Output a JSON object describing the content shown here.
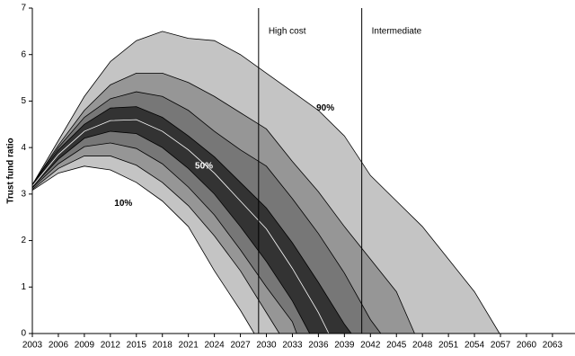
{
  "chart_data": {
    "type": "fan",
    "y_label": "Trust fund ratio",
    "xlim": [
      2003,
      2065.6
    ],
    "ylim": [
      0,
      7
    ],
    "xticks": [
      2003,
      2006,
      2009,
      2012,
      2015,
      2018,
      2021,
      2024,
      2027,
      2030,
      2033,
      2036,
      2039,
      2042,
      2045,
      2048,
      2051,
      2054,
      2057,
      2060,
      2063
    ],
    "yticks": [
      0,
      1,
      2,
      3,
      4,
      5,
      6,
      7
    ],
    "grid": false,
    "vlines": [
      {
        "x": 2029.1,
        "label": "High cost"
      },
      {
        "x": 2041,
        "label": "Intermediate"
      }
    ],
    "series": [
      {
        "name": "90%",
        "fill": "#c4c4c4",
        "line_color": "#000000",
        "x": [
          2003,
          2006,
          2009,
          2012,
          2015,
          2018,
          2021,
          2024,
          2027,
          2030,
          2033,
          2036,
          2039,
          2042,
          2045,
          2048,
          2051,
          2054,
          2056.9
        ],
        "values": [
          3.2,
          4.15,
          5.1,
          5.85,
          6.3,
          6.5,
          6.35,
          6.3,
          6.0,
          5.6,
          5.2,
          4.8,
          4.25,
          3.4,
          2.85,
          2.3,
          1.6,
          0.9,
          0
        ]
      },
      {
        "fill": "#969696",
        "line_color": "#000000",
        "x": [
          2003,
          2006,
          2009,
          2012,
          2015,
          2018,
          2021,
          2024,
          2027,
          2030,
          2033,
          2036,
          2039,
          2042,
          2045,
          2047.1
        ],
        "values": [
          3.2,
          4.05,
          4.8,
          5.35,
          5.6,
          5.6,
          5.4,
          5.1,
          4.75,
          4.4,
          3.7,
          3.05,
          2.3,
          1.6,
          0.9,
          0
        ]
      },
      {
        "fill": "#777777",
        "line_color": "#000000",
        "x": [
          2003,
          2006,
          2009,
          2012,
          2015,
          2018,
          2021,
          2024,
          2027,
          2030,
          2033,
          2036,
          2039,
          2042,
          2043.2
        ],
        "values": [
          3.2,
          4.0,
          4.65,
          5.05,
          5.2,
          5.1,
          4.8,
          4.35,
          3.95,
          3.6,
          2.9,
          2.15,
          1.3,
          0.3,
          0
        ]
      },
      {
        "fill": "#333333",
        "line_color": "#000000",
        "x": [
          2003,
          2006,
          2009,
          2012,
          2015,
          2018,
          2021,
          2024,
          2027,
          2030,
          2033,
          2036,
          2039,
          2039.8
        ],
        "values": [
          3.18,
          3.95,
          4.5,
          4.85,
          4.88,
          4.65,
          4.25,
          3.8,
          3.25,
          2.7,
          1.95,
          1.1,
          0.2,
          0
        ]
      },
      {
        "name": "50%",
        "fill": "#333333",
        "line_color": "#ffffff",
        "x": [
          2003,
          2006,
          2009,
          2012,
          2015,
          2018,
          2021,
          2024,
          2027,
          2030,
          2033,
          2036,
          2037.2
        ],
        "values": [
          3.17,
          3.85,
          4.35,
          4.58,
          4.6,
          4.35,
          3.95,
          3.45,
          2.85,
          2.25,
          1.4,
          0.45,
          0
        ]
      },
      {
        "fill": "#777777",
        "line_color": "#000000",
        "x": [
          2003,
          2006,
          2009,
          2012,
          2015,
          2018,
          2021,
          2024,
          2027,
          2030,
          2033,
          2035
        ],
        "values": [
          3.15,
          3.75,
          4.2,
          4.35,
          4.3,
          4.0,
          3.55,
          3.0,
          2.3,
          1.55,
          0.7,
          0
        ]
      },
      {
        "fill": "#969696",
        "line_color": "#000000",
        "x": [
          2003,
          2006,
          2009,
          2012,
          2015,
          2018,
          2021,
          2024,
          2027,
          2030,
          2033,
          2033.5
        ],
        "values": [
          3.13,
          3.65,
          4.02,
          4.1,
          3.98,
          3.65,
          3.15,
          2.55,
          1.8,
          1.0,
          0.25,
          0
        ]
      },
      {
        "fill": "#c4c4c4",
        "line_color": "#000000",
        "x": [
          2003,
          2006,
          2009,
          2012,
          2015,
          2018,
          2021,
          2024,
          2027,
          2030,
          2031.5
        ],
        "values": [
          3.1,
          3.55,
          3.82,
          3.82,
          3.62,
          3.25,
          2.75,
          2.1,
          1.35,
          0.45,
          0
        ]
      },
      {
        "name": "10%",
        "fill": "#ffffff",
        "line_color": "#000000",
        "x": [
          2003,
          2006,
          2009,
          2012,
          2015,
          2018,
          2021,
          2024,
          2027,
          2028.6
        ],
        "values": [
          3.08,
          3.45,
          3.6,
          3.52,
          3.25,
          2.85,
          2.3,
          1.35,
          0.5,
          0
        ]
      }
    ]
  }
}
